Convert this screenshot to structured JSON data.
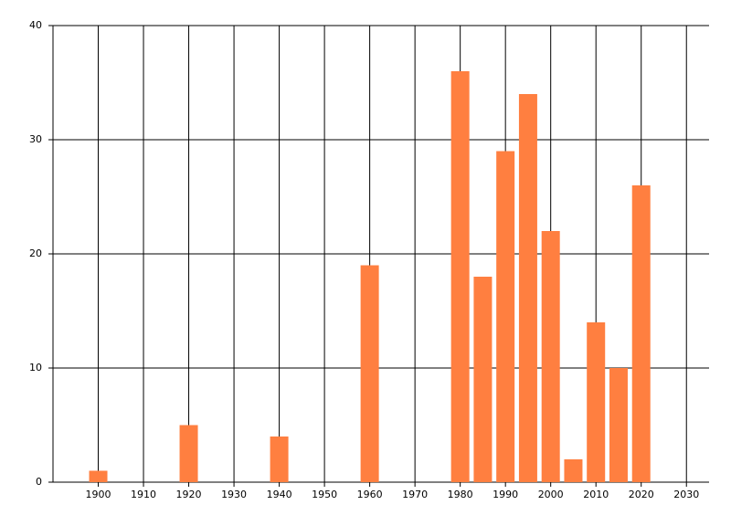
{
  "chart_data": {
    "type": "bar",
    "x": [
      1900,
      1920,
      1940,
      1960,
      1980,
      1985,
      1990,
      1995,
      2000,
      2005,
      2010,
      2015,
      2020
    ],
    "values": [
      1,
      5,
      4,
      19,
      36,
      18,
      29,
      34,
      22,
      2,
      14,
      10,
      26
    ],
    "color": "#ff7f40",
    "xlim": [
      1890,
      2035
    ],
    "xticks": [
      1900,
      1910,
      1920,
      1930,
      1940,
      1950,
      1960,
      1970,
      1980,
      1990,
      2000,
      2010,
      2020,
      2030
    ],
    "ylim": [
      0,
      40
    ],
    "yticks": [
      0,
      10,
      20,
      30,
      40
    ],
    "grid": true
  }
}
